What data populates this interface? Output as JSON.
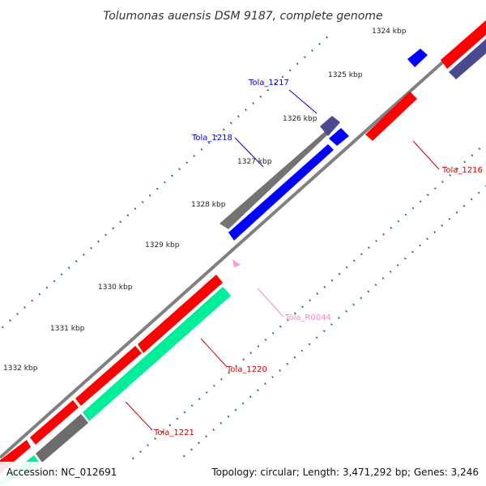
{
  "title": "Tolumonas auensis DSM 9187, complete genome",
  "ticks": [
    "1324 kbp",
    "1325 kbp",
    "1326 kbp",
    "1327 kbp",
    "1328 kbp",
    "1329 kbp",
    "1330 kbp",
    "1331 kbp",
    "1332 kbp"
  ],
  "genes": [
    {
      "label": "Tola_1217",
      "color": "#0000cc"
    },
    {
      "label": "Tola_1218",
      "color": "#0000cc"
    },
    {
      "label": "Tola_1216",
      "color": "#cc0000"
    },
    {
      "label": "Tola_R0044",
      "color": "#f08cc0"
    },
    {
      "label": "Tola_1220",
      "color": "#cc0000"
    },
    {
      "label": "Tola_1221",
      "color": "#cc0000"
    }
  ],
  "footer": {
    "accession": "Accession: NC_012691",
    "summary": "Topology: circular; Length: 3,471,292 bp; Genes: 3,246"
  },
  "colors": {
    "backbone": "#808080",
    "forward_cds": "#0000ff",
    "reverse_cds": "#ff0000",
    "rrna": "#ff99cc",
    "trna_band": "#00ee99",
    "gc_band": "#6c6c6c",
    "other_band": "#4a4a90",
    "tick": "#1a7a1a"
  }
}
